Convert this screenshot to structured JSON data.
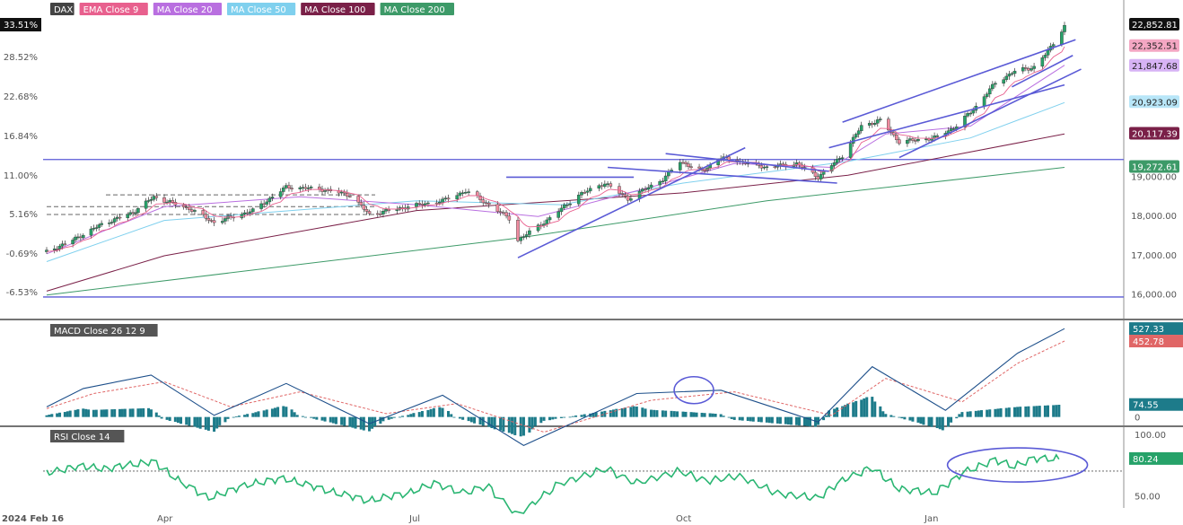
{
  "chart_data": {
    "type": "line",
    "title": "DAX",
    "indicators": [
      {
        "name": "EMA Close 9",
        "color": "#e8608e"
      },
      {
        "name": "MA Close 20",
        "color": "#b96fe0"
      },
      {
        "name": "MA Close 50",
        "color": "#7fd0ee"
      },
      {
        "name": "MA Close 100",
        "color": "#7a2048"
      },
      {
        "name": "MA Close 200",
        "color": "#3d9a68"
      }
    ],
    "x_tick_labels": [
      "2024 Feb 16",
      "Apr",
      "Jul",
      "Oct",
      "Jan"
    ],
    "x_dates": [
      "2024-02-16",
      "2024-04-01",
      "2024-07-01",
      "2024-10-01",
      "2025-01-01",
      "2025-02-18"
    ],
    "pct_axis": {
      "labels": [
        "33.51%",
        "28.52%",
        "22.68%",
        "16.84%",
        "11.00%",
        "5.16%",
        "-0.69%",
        "-6.53%"
      ]
    },
    "price_axis": {
      "labels": [
        "16,000.00",
        "17,000.00",
        "18,000.00",
        "19,000.00"
      ],
      "ylim": [
        15400,
        23100
      ]
    },
    "price_badges": [
      {
        "label": "22,852.81",
        "value": 22852.81,
        "bg": "#111111",
        "fg": "#ffffff"
      },
      {
        "label": "22,352.51",
        "value": 22352.51,
        "bg": "#f4a7c3",
        "fg": "#222222"
      },
      {
        "label": "21,847.68",
        "value": 21847.68,
        "bg": "#d7b3f5",
        "fg": "#222222"
      },
      {
        "label": "20,923.09",
        "value": 20923.09,
        "bg": "#b8e6f8",
        "fg": "#222222"
      },
      {
        "label": "20,117.39",
        "value": 20117.39,
        "bg": "#7a2048",
        "fg": "#ffffff"
      },
      {
        "label": "19,272.61",
        "value": 19272.61,
        "bg": "#3d9a68",
        "fg": "#ffffff"
      }
    ],
    "pct_badge": {
      "label": "33.51%"
    },
    "price_series": {
      "name": "DAX",
      "points": [
        [
          "2024-02-16",
          17100
        ],
        [
          "2024-02-26",
          17400
        ],
        [
          "2024-03-08",
          17800
        ],
        [
          "2024-03-20",
          18100
        ],
        [
          "2024-03-28",
          18500
        ],
        [
          "2024-04-10",
          18200
        ],
        [
          "2024-04-19",
          17850
        ],
        [
          "2024-05-03",
          18150
        ],
        [
          "2024-05-15",
          18750
        ],
        [
          "2024-05-27",
          18700
        ],
        [
          "2024-06-07",
          18550
        ],
        [
          "2024-06-14",
          18050
        ],
        [
          "2024-06-28",
          18250
        ],
        [
          "2024-07-10",
          18400
        ],
        [
          "2024-07-18",
          18650
        ],
        [
          "2024-07-26",
          18300
        ],
        [
          "2024-08-02",
          17950
        ],
        [
          "2024-08-05",
          17400
        ],
        [
          "2024-08-15",
          17900
        ],
        [
          "2024-08-26",
          18550
        ],
        [
          "2024-09-04",
          18850
        ],
        [
          "2024-09-12",
          18450
        ],
        [
          "2024-09-24",
          18950
        ],
        [
          "2024-09-30",
          19400
        ],
        [
          "2024-10-08",
          19150
        ],
        [
          "2024-10-15",
          19500
        ],
        [
          "2024-10-22",
          19400
        ],
        [
          "2024-11-01",
          19250
        ],
        [
          "2024-11-12",
          19350
        ],
        [
          "2024-11-20",
          19000
        ],
        [
          "2024-11-29",
          19550
        ],
        [
          "2024-12-06",
          20300
        ],
        [
          "2024-12-13",
          20450
        ],
        [
          "2024-12-20",
          19900
        ],
        [
          "2025-01-02",
          20000
        ],
        [
          "2025-01-10",
          20300
        ],
        [
          "2025-01-17",
          20800
        ],
        [
          "2025-01-24",
          21400
        ],
        [
          "2025-01-31",
          21700
        ],
        [
          "2025-02-07",
          21800
        ],
        [
          "2025-02-12",
          22200
        ],
        [
          "2025-02-18",
          22850
        ]
      ]
    },
    "ma200": [
      [
        "2024-02-16",
        16000
      ],
      [
        "2024-08-05",
        17450
      ],
      [
        "2024-11-01",
        18400
      ],
      [
        "2025-02-18",
        19250
      ]
    ],
    "ma100": [
      [
        "2024-02-16",
        16100
      ],
      [
        "2024-04-01",
        17000
      ],
      [
        "2024-07-01",
        18150
      ],
      [
        "2024-10-01",
        18600
      ],
      [
        "2024-12-01",
        19050
      ],
      [
        "2025-02-18",
        20100
      ]
    ],
    "ma50": [
      [
        "2024-02-16",
        16850
      ],
      [
        "2024-04-01",
        17900
      ],
      [
        "2024-07-01",
        18400
      ],
      [
        "2024-08-20",
        18300
      ],
      [
        "2024-10-01",
        18850
      ],
      [
        "2024-12-01",
        19400
      ],
      [
        "2025-01-15",
        20000
      ],
      [
        "2025-02-18",
        20900
      ]
    ],
    "ma20": [
      [
        "2024-02-16",
        17050
      ],
      [
        "2024-04-01",
        18250
      ],
      [
        "2024-05-20",
        18500
      ],
      [
        "2024-07-01",
        18300
      ],
      [
        "2024-08-12",
        18000
      ],
      [
        "2024-09-20",
        18750
      ],
      [
        "2024-10-20",
        19350
      ],
      [
        "2024-11-25",
        19250
      ],
      [
        "2024-12-15",
        20100
      ],
      [
        "2025-01-15",
        20300
      ],
      [
        "2025-02-18",
        21850
      ]
    ],
    "horizontal_lines": [
      15950,
      19450
    ],
    "dashed_lines": [
      18550,
      18250,
      18050
    ],
    "trend_lines": [
      [
        [
          "2024-08-05",
          16950
        ],
        [
          "2024-10-24",
          19750
        ]
      ],
      [
        [
          "2024-08-01",
          19000
        ],
        [
          "2024-09-14",
          19000
        ]
      ],
      [
        [
          "2024-09-05",
          19250
        ],
        [
          "2024-11-27",
          18850
        ]
      ],
      [
        [
          "2024-09-25",
          19600
        ],
        [
          "2024-11-24",
          19150
        ]
      ],
      [
        [
          "2024-11-24",
          19750
        ],
        [
          "2025-02-18",
          21350
        ]
      ],
      [
        [
          "2024-11-29",
          20400
        ],
        [
          "2025-02-22",
          22500
        ]
      ],
      [
        [
          "2024-12-20",
          19500
        ],
        [
          "2025-02-24",
          21750
        ]
      ],
      [
        [
          "2025-01-30",
          21300
        ],
        [
          "2025-02-21",
          22100
        ]
      ]
    ],
    "macd": {
      "label": "MACD Close 26 12 9",
      "ylim": [
        -50,
        560
      ],
      "badges": [
        {
          "label": "527.33",
          "value": 527.33,
          "bg": "#1d7b8a"
        },
        {
          "label": "452.78",
          "value": 452.78,
          "bg": "#e06666"
        },
        {
          "label": "74.55",
          "value": 74.55,
          "bg": "#1d7b8a"
        }
      ],
      "axis_labels": [
        "0"
      ],
      "macd_line": [
        [
          "2024-02-16",
          60
        ],
        [
          "2024-03-01",
          170
        ],
        [
          "2024-03-27",
          250
        ],
        [
          "2024-04-19",
          10
        ],
        [
          "2024-05-15",
          200
        ],
        [
          "2024-06-14",
          -40
        ],
        [
          "2024-07-10",
          130
        ],
        [
          "2024-08-07",
          -170
        ],
        [
          "2024-09-15",
          140
        ],
        [
          "2024-10-15",
          160
        ],
        [
          "2024-11-20",
          -30
        ],
        [
          "2024-12-10",
          300
        ],
        [
          "2025-01-06",
          40
        ],
        [
          "2025-02-01",
          380
        ],
        [
          "2025-02-18",
          527
        ]
      ],
      "signal_line": [
        [
          "2024-02-16",
          50
        ],
        [
          "2024-03-05",
          140
        ],
        [
          "2024-04-01",
          210
        ],
        [
          "2024-04-25",
          60
        ],
        [
          "2024-05-20",
          150
        ],
        [
          "2024-06-20",
          20
        ],
        [
          "2024-07-15",
          80
        ],
        [
          "2024-08-14",
          -90
        ],
        [
          "2024-09-20",
          100
        ],
        [
          "2024-10-20",
          150
        ],
        [
          "2024-11-25",
          10
        ],
        [
          "2024-12-15",
          230
        ],
        [
          "2025-01-12",
          90
        ],
        [
          "2025-02-01",
          320
        ],
        [
          "2025-02-18",
          453
        ]
      ],
      "hist_from": "2024-02-16",
      "hist_to": "2025-02-18"
    },
    "rsi": {
      "label": "RSI Close 14",
      "ylim": [
        40,
        105
      ],
      "axis_labels": [
        "100.00",
        "50.00"
      ],
      "axis_values": [
        100,
        50
      ],
      "reference_level": 70,
      "badge": {
        "label": "80.24",
        "value": 80.24,
        "bg": "#26a269"
      },
      "line": [
        [
          "2024-02-16",
          68
        ],
        [
          "2024-02-28",
          74
        ],
        [
          "2024-03-10",
          72
        ],
        [
          "2024-03-22",
          76
        ],
        [
          "2024-03-28",
          78
        ],
        [
          "2024-04-05",
          65
        ],
        [
          "2024-04-17",
          48
        ],
        [
          "2024-05-03",
          60
        ],
        [
          "2024-05-15",
          64
        ],
        [
          "2024-05-29",
          55
        ],
        [
          "2024-06-14",
          46
        ],
        [
          "2024-06-28",
          52
        ],
        [
          "2024-07-08",
          60
        ],
        [
          "2024-07-18",
          52
        ],
        [
          "2024-07-26",
          58
        ],
        [
          "2024-08-05",
          34
        ],
        [
          "2024-08-20",
          60
        ],
        [
          "2024-09-05",
          72
        ],
        [
          "2024-09-15",
          60
        ],
        [
          "2024-09-30",
          70
        ],
        [
          "2024-10-10",
          62
        ],
        [
          "2024-10-22",
          66
        ],
        [
          "2024-11-05",
          52
        ],
        [
          "2024-11-20",
          48
        ],
        [
          "2024-11-29",
          62
        ],
        [
          "2024-12-10",
          73
        ],
        [
          "2024-12-20",
          56
        ],
        [
          "2025-01-02",
          52
        ],
        [
          "2025-01-14",
          70
        ],
        [
          "2025-01-24",
          79
        ],
        [
          "2025-01-31",
          74
        ],
        [
          "2025-02-07",
          80
        ],
        [
          "2025-02-18",
          80.24
        ]
      ]
    },
    "circles": [
      {
        "pane": "macd",
        "center": [
          "2024-10-05",
          160
        ]
      },
      {
        "pane": "rsi",
        "center": [
          "2025-02-01",
          75
        ]
      }
    ]
  }
}
